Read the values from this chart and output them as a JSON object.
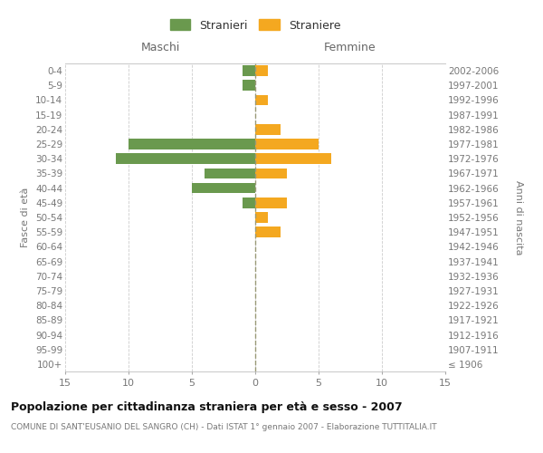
{
  "age_groups": [
    "100+",
    "95-99",
    "90-94",
    "85-89",
    "80-84",
    "75-79",
    "70-74",
    "65-69",
    "60-64",
    "55-59",
    "50-54",
    "45-49",
    "40-44",
    "35-39",
    "30-34",
    "25-29",
    "20-24",
    "15-19",
    "10-14",
    "5-9",
    "0-4"
  ],
  "birth_years": [
    "≤ 1906",
    "1907-1911",
    "1912-1916",
    "1917-1921",
    "1922-1926",
    "1927-1931",
    "1932-1936",
    "1937-1941",
    "1942-1946",
    "1947-1951",
    "1952-1956",
    "1957-1961",
    "1962-1966",
    "1967-1971",
    "1972-1976",
    "1977-1981",
    "1982-1986",
    "1987-1991",
    "1992-1996",
    "1997-2001",
    "2002-2006"
  ],
  "males": [
    0,
    0,
    0,
    0,
    0,
    0,
    0,
    0,
    0,
    0,
    0,
    1,
    5,
    4,
    11,
    10,
    0,
    0,
    0,
    1,
    1
  ],
  "females": [
    0,
    0,
    0,
    0,
    0,
    0,
    0,
    0,
    0,
    2,
    1,
    2.5,
    0,
    2.5,
    6,
    5,
    2,
    0,
    1,
    0,
    1
  ],
  "male_color": "#6a994e",
  "female_color": "#f4a820",
  "title": "Popolazione per cittadinanza straniera per età e sesso - 2007",
  "subtitle": "COMUNE DI SANT'EUSANIO DEL SANGRO (CH) - Dati ISTAT 1° gennaio 2007 - Elaborazione TUTTITALIA.IT",
  "xlabel_left": "Maschi",
  "xlabel_right": "Femmine",
  "ylabel_left": "Fasce di età",
  "ylabel_right": "Anni di nascita",
  "legend_male": "Stranieri",
  "legend_female": "Straniere",
  "xlim": 15,
  "background_color": "#ffffff",
  "grid_color": "#cccccc"
}
